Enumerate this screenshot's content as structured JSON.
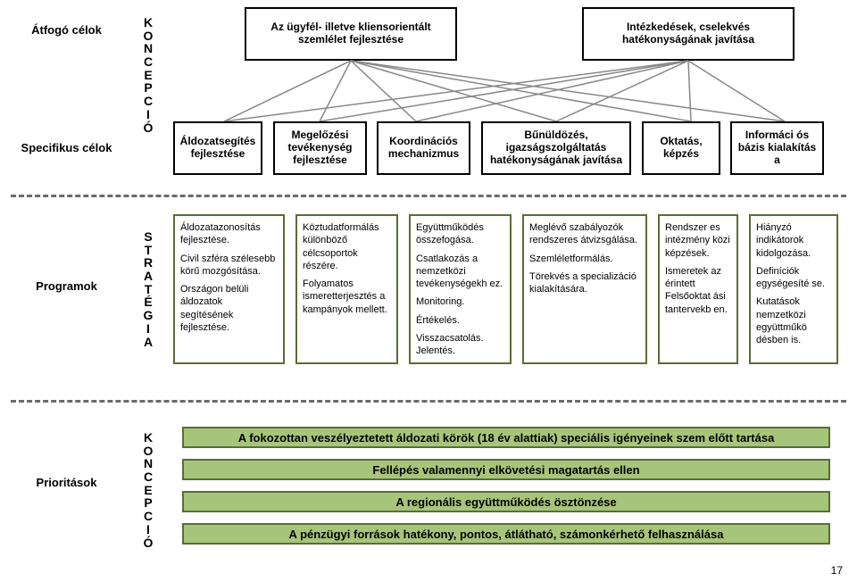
{
  "rowLabels": {
    "atfogo": "Átfogó célok",
    "specifikus": "Specifikus célok",
    "programok": "Programok",
    "prioritasok": "Prioritások"
  },
  "vertical": {
    "koncepcio1": "KONCEPCIÓ",
    "strategia": "STRATÉGIA",
    "koncepcio2": "KONCEPCIÓ"
  },
  "topGoals": {
    "left": "Az ügyfél- illetve kliensorientált szemlélet fejlesztése",
    "right": "Intézkedések, cselekvés hatékonyságának javítása"
  },
  "specGoals": {
    "b1": "Áldozatsegítés fejlesztése",
    "b2": "Megelőzési tevékenység fejlesztése",
    "b3": "Koordinációs mechanizmus",
    "b4": "Bűnüldözés, igazságszolgáltatás hatékonyságának javítása",
    "b5": "Oktatás, képzés",
    "b6": "Informáci ós bázis kialakítás a"
  },
  "programs": {
    "c1": {
      "p1": "Áldozatazonosítás fejlesztése.",
      "p2": "Civil szféra szélesebb körű mozgósítása.",
      "p3": "Országon belüli áldozatok segítésének fejlesztése."
    },
    "c2": {
      "p1": "Köztudatformálás különböző célcsoportok részére.",
      "p2": "Folyamatos ismeretterjesztés a kampányok mellett."
    },
    "c3": {
      "p1": "Együttműködés összefogása.",
      "p2": "Csatlakozás a nemzetközi tevékenységekh ez.",
      "p3": "Monitoring.",
      "p4": "Értékelés.",
      "p5": "Visszacsatolás. Jelentés."
    },
    "c4": {
      "p1": "Meglévő szabályozók rendszeres átvizsgálása.",
      "p2": "Szemléletformálás.",
      "p3": "Törekvés a specializáció kialakítására."
    },
    "c5": {
      "p1": "Rendszer es intézmény közi képzések.",
      "p2": "Ismeretek az érintett Felsőoktat ási tantervekb en."
    },
    "c6": {
      "p1": "Hiányzó indikátorok kidolgozása.",
      "p2": "Definíciók egységesíté se.",
      "p3": "Kutatások nemzetközi együttműkö désben is."
    }
  },
  "priorities": {
    "p1": "A fokozottan veszélyeztetett áldozati körök (18 év alattiak) speciális igényeinek szem előtt tartása",
    "p2": "Fellépés valamennyi elkövetési magatartás ellen",
    "p3": "A regionális együttműködés ösztönzése",
    "p4": "A pénzügyi források hatékony, pontos, átlátható, számonkérhető felhasználása"
  },
  "pageNumber": "17"
}
